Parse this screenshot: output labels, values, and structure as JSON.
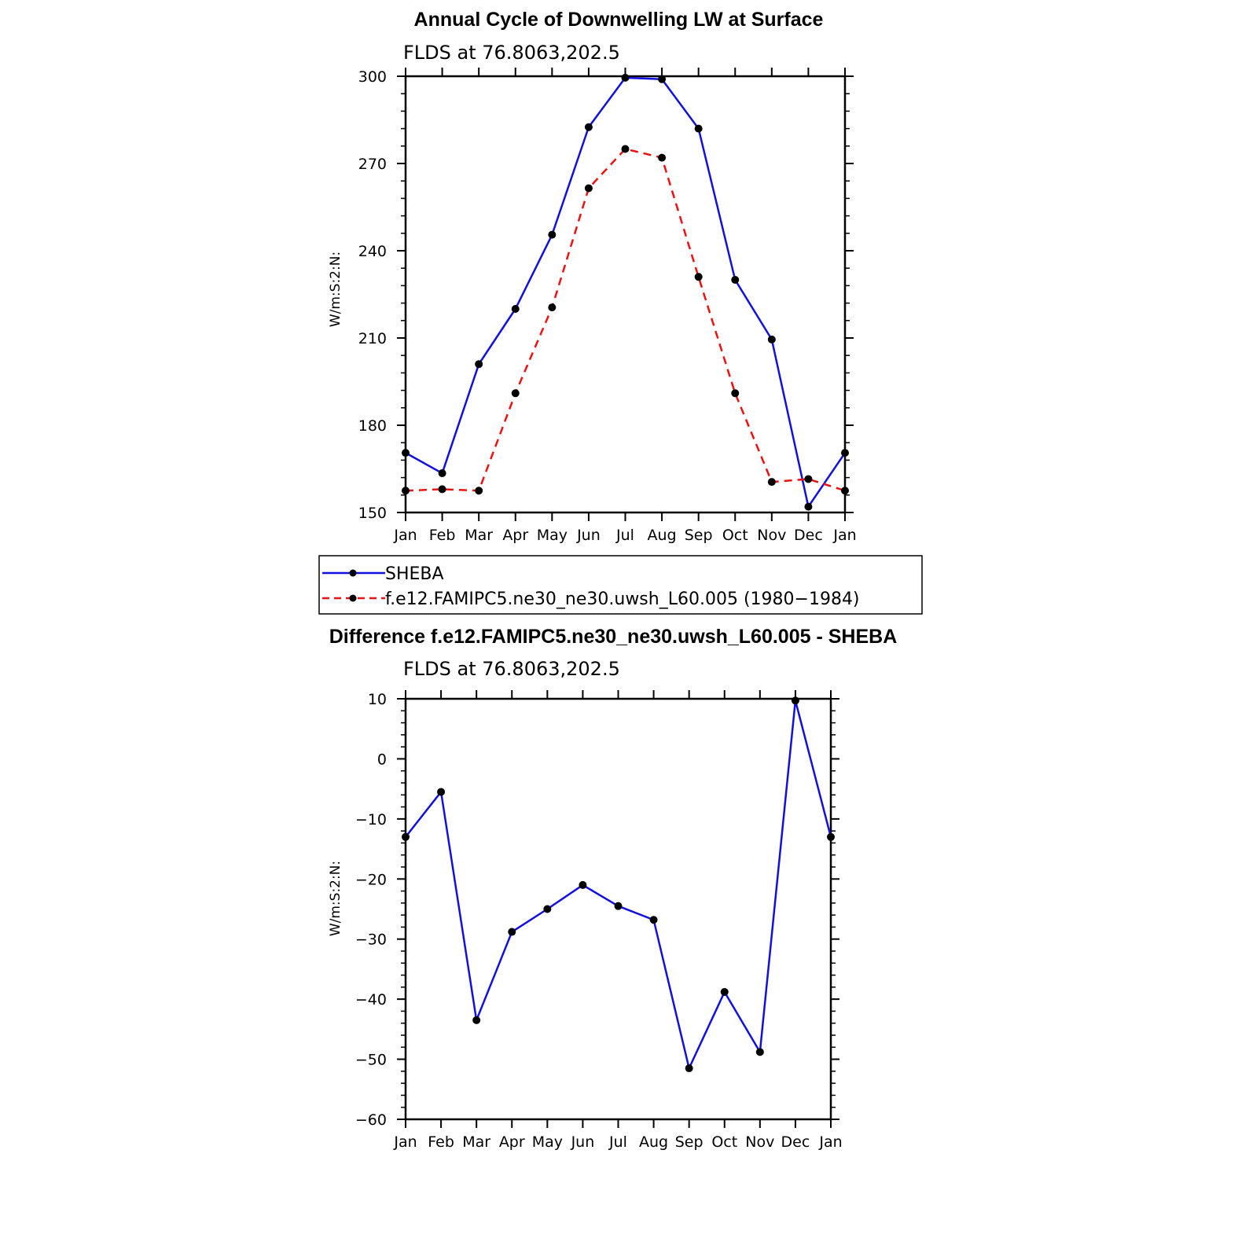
{
  "top": {
    "title": "Annual Cycle of Downwelling LW at Surface",
    "subtitle": "FLDS at 76.8063,202.5",
    "ylabel": "W/m:S:2:N:"
  },
  "bottom": {
    "title": "Difference f.e12.FAMIPC5.ne30_ne30.uwsh_L60.005 - SHEBA",
    "subtitle": "FLDS at 76.8063,202.5",
    "ylabel": "W/m:S:2:N:"
  },
  "legend": {
    "sheba": "SHEBA",
    "model": "f.e12.FAMIPC5.ne30_ne30.uwsh_L60.005 (1980−1984)"
  },
  "colors": {
    "sheba": "#1010e0",
    "model": "#ee1111",
    "marker": "#000000"
  },
  "chart_data": [
    {
      "type": "line",
      "title": "Annual Cycle of Downwelling LW at Surface",
      "subtitle": "FLDS at 76.8063,202.5",
      "ylabel": "W/m:S:2:N:",
      "categories": [
        "Jan",
        "Feb",
        "Mar",
        "Apr",
        "May",
        "Jun",
        "Jul",
        "Aug",
        "Sep",
        "Oct",
        "Nov",
        "Dec",
        "Jan"
      ],
      "ylim": [
        150,
        300
      ],
      "yticks": [
        150,
        180,
        210,
        240,
        270,
        300
      ],
      "series": [
        {
          "name": "SHEBA",
          "style": "solid",
          "values": [
            170.5,
            163.5,
            201,
            220,
            245.5,
            282.5,
            299.5,
            299,
            282,
            230,
            209.5,
            152,
            170.5
          ]
        },
        {
          "name": "f.e12.FAMIPC5.ne30_ne30.uwsh_L60.005 (1980−1984)",
          "style": "dashed",
          "values": [
            157.5,
            158,
            157.5,
            191,
            220.5,
            261.5,
            275,
            272,
            231,
            191,
            160.5,
            161.5,
            157.5
          ]
        }
      ],
      "legend_position": "below"
    },
    {
      "type": "line",
      "title": "Difference f.e12.FAMIPC5.ne30_ne30.uwsh_L60.005 - SHEBA",
      "subtitle": "FLDS at 76.8063,202.5",
      "ylabel": "W/m:S:2:N:",
      "categories": [
        "Jan",
        "Feb",
        "Mar",
        "Apr",
        "May",
        "Jun",
        "Jul",
        "Aug",
        "Sep",
        "Oct",
        "Nov",
        "Dec",
        "Jan"
      ],
      "ylim": [
        -60,
        10
      ],
      "yticks": [
        -60,
        -50,
        -40,
        -30,
        -20,
        -10,
        0,
        10
      ],
      "ytick_labels": [
        "−60",
        "−50",
        "−40",
        "−30",
        "−20",
        "−10",
        "0",
        "10"
      ],
      "series": [
        {
          "style": "solid",
          "values": [
            -13,
            -5.5,
            -43.5,
            -28.8,
            -25,
            -21,
            -24.5,
            -26.8,
            -51.5,
            -38.8,
            -48.8,
            9.7,
            -13
          ]
        }
      ]
    }
  ]
}
